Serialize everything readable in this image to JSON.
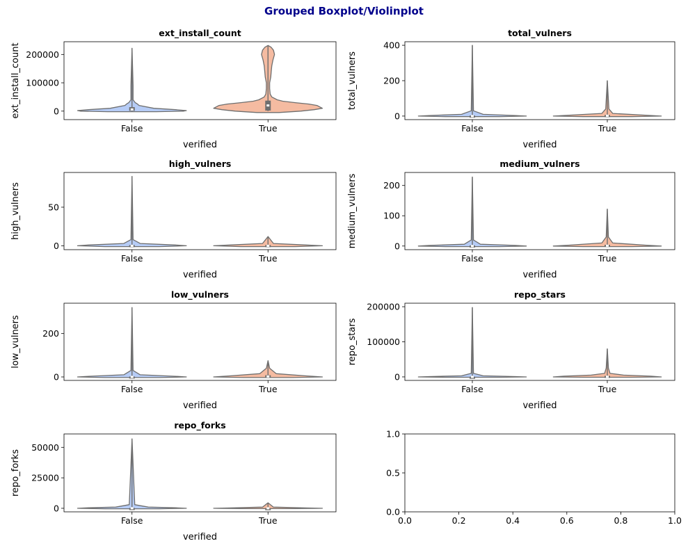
{
  "figure": {
    "suptitle": "Grouped Boxplot/Violinplot",
    "colors": {
      "title": "#00008b",
      "violin_false": "#b6ccf6",
      "violin_true": "#f5bba1",
      "line": "#6e6e6e",
      "axes": "#000000"
    }
  },
  "chart_data": [
    {
      "type": "violin",
      "title": "ext_install_count",
      "xlabel": "verified",
      "ylabel": "ext_install_count",
      "categories": [
        "False",
        "True"
      ],
      "ylim": [
        -30000,
        245000
      ],
      "yticks": [
        0,
        100000,
        200000
      ],
      "yticklabels": [
        "0",
        "100000",
        "200000"
      ],
      "groups": [
        {
          "name": "False",
          "min": 0,
          "max": 222000,
          "q1": 1000,
          "median": 6000,
          "q3": 14000,
          "profile": [
            [
              -2000,
              0.45
            ],
            [
              0,
              0.95
            ],
            [
              2000,
              1.0
            ],
            [
              5000,
              0.8
            ],
            [
              10000,
              0.4
            ],
            [
              20000,
              0.13
            ],
            [
              25000,
              0.1
            ],
            [
              30000,
              0.06
            ],
            [
              40000,
              0.02
            ],
            [
              60000,
              0.02
            ],
            [
              90000,
              0.02
            ],
            [
              222000,
              0.0
            ]
          ]
        },
        {
          "name": "True",
          "min": 0,
          "max": 232000,
          "q1": 2000,
          "median": 20000,
          "q3": 37000,
          "profile": [
            [
              -5000,
              0.2
            ],
            [
              0,
              0.6
            ],
            [
              5000,
              0.85
            ],
            [
              10000,
              1.0
            ],
            [
              20000,
              0.9
            ],
            [
              25000,
              0.75
            ],
            [
              30000,
              0.5
            ],
            [
              35000,
              0.27
            ],
            [
              40000,
              0.17
            ],
            [
              50000,
              0.07
            ],
            [
              60000,
              0.04
            ],
            [
              80000,
              0.03
            ],
            [
              100000,
              0.03
            ],
            [
              120000,
              0.05
            ],
            [
              140000,
              0.06
            ],
            [
              160000,
              0.07
            ],
            [
              180000,
              0.09
            ],
            [
              200000,
              0.12
            ],
            [
              215000,
              0.1
            ],
            [
              225000,
              0.06
            ],
            [
              232000,
              0.0
            ]
          ]
        }
      ]
    },
    {
      "type": "violin",
      "title": "total_vulners",
      "xlabel": "verified",
      "ylabel": "total_vulners",
      "categories": [
        "False",
        "True"
      ],
      "ylim": [
        -20,
        420
      ],
      "yticks": [
        0,
        200,
        400
      ],
      "yticklabels": [
        "0",
        "200",
        "400"
      ],
      "groups": [
        {
          "name": "False",
          "min": 0,
          "max": 400,
          "q1": 0,
          "median": 0,
          "q3": 3,
          "profile": [
            [
              -3,
              0.5
            ],
            [
              0,
              1.0
            ],
            [
              3,
              0.8
            ],
            [
              10,
              0.2
            ],
            [
              30,
              0.02
            ],
            [
              400,
              0.0
            ]
          ]
        },
        {
          "name": "True",
          "min": 0,
          "max": 200,
          "q1": 0,
          "median": 2,
          "q3": 6,
          "profile": [
            [
              -3,
              0.45
            ],
            [
              0,
              1.0
            ],
            [
              5,
              0.7
            ],
            [
              15,
              0.1
            ],
            [
              40,
              0.03
            ],
            [
              200,
              0.0
            ]
          ]
        }
      ]
    },
    {
      "type": "violin",
      "title": "high_vulners",
      "xlabel": "verified",
      "ylabel": "high_vulners",
      "categories": [
        "False",
        "True"
      ],
      "ylim": [
        -5,
        95
      ],
      "yticks": [
        0,
        50
      ],
      "yticklabels": [
        "0",
        "50"
      ],
      "groups": [
        {
          "name": "False",
          "min": 0,
          "max": 90,
          "q1": 0,
          "median": 0,
          "q3": 1,
          "profile": [
            [
              -1,
              0.5
            ],
            [
              0,
              1.0
            ],
            [
              1,
              0.8
            ],
            [
              3,
              0.15
            ],
            [
              8,
              0.02
            ],
            [
              90,
              0.0
            ]
          ]
        },
        {
          "name": "True",
          "min": 0,
          "max": 12,
          "q1": 0,
          "median": 0,
          "q3": 1,
          "profile": [
            [
              -1,
              0.5
            ],
            [
              0,
              1.0
            ],
            [
              1,
              0.7
            ],
            [
              3,
              0.1
            ],
            [
              12,
              0.0
            ]
          ]
        }
      ]
    },
    {
      "type": "violin",
      "title": "medium_vulners",
      "xlabel": "verified",
      "ylabel": "medium_vulners",
      "categories": [
        "False",
        "True"
      ],
      "ylim": [
        -12,
        243
      ],
      "yticks": [
        0,
        100,
        200
      ],
      "yticklabels": [
        "0",
        "100",
        "200"
      ],
      "groups": [
        {
          "name": "False",
          "min": 0,
          "max": 228,
          "q1": 0,
          "median": 0,
          "q3": 2,
          "profile": [
            [
              -2,
              0.5
            ],
            [
              0,
              1.0
            ],
            [
              2,
              0.8
            ],
            [
              6,
              0.15
            ],
            [
              20,
              0.02
            ],
            [
              228,
              0.0
            ]
          ]
        },
        {
          "name": "True",
          "min": 0,
          "max": 122,
          "q1": 0,
          "median": 1,
          "q3": 4,
          "profile": [
            [
              -2,
              0.45
            ],
            [
              0,
              1.0
            ],
            [
              3,
              0.7
            ],
            [
              10,
              0.1
            ],
            [
              30,
              0.02
            ],
            [
              122,
              0.0
            ]
          ]
        }
      ]
    },
    {
      "type": "violin",
      "title": "low_vulners",
      "xlabel": "verified",
      "ylabel": "low_vulners",
      "categories": [
        "False",
        "True"
      ],
      "ylim": [
        -16,
        340
      ],
      "yticks": [
        0,
        200
      ],
      "yticklabels": [
        "0",
        "200"
      ],
      "groups": [
        {
          "name": "False",
          "min": 0,
          "max": 320,
          "q1": 0,
          "median": 0,
          "q3": 2,
          "profile": [
            [
              -3,
              0.5
            ],
            [
              0,
              1.0
            ],
            [
              3,
              0.8
            ],
            [
              10,
              0.15
            ],
            [
              30,
              0.02
            ],
            [
              320,
              0.0
            ]
          ]
        },
        {
          "name": "True",
          "min": 0,
          "max": 75,
          "q1": 0,
          "median": 2,
          "q3": 8,
          "profile": [
            [
              -3,
              0.45
            ],
            [
              0,
              1.0
            ],
            [
              5,
              0.7
            ],
            [
              15,
              0.15
            ],
            [
              40,
              0.03
            ],
            [
              75,
              0.0
            ]
          ]
        }
      ]
    },
    {
      "type": "violin",
      "title": "repo_stars",
      "xlabel": "verified",
      "ylabel": "repo_stars",
      "categories": [
        "False",
        "True"
      ],
      "ylim": [
        -10000,
        210000
      ],
      "yticks": [
        0,
        100000,
        200000
      ],
      "yticklabels": [
        "0",
        "100000",
        "200000"
      ],
      "groups": [
        {
          "name": "False",
          "min": 0,
          "max": 198000,
          "q1": 0,
          "median": 100,
          "q3": 600,
          "profile": [
            [
              -1000,
              0.5
            ],
            [
              0,
              1.0
            ],
            [
              1000,
              0.8
            ],
            [
              3000,
              0.2
            ],
            [
              10000,
              0.02
            ],
            [
              198000,
              0.0
            ]
          ]
        },
        {
          "name": "True",
          "min": 0,
          "max": 80000,
          "q1": 0,
          "median": 500,
          "q3": 3000,
          "profile": [
            [
              -1000,
              0.45
            ],
            [
              0,
              1.0
            ],
            [
              2000,
              0.8
            ],
            [
              5000,
              0.3
            ],
            [
              10000,
              0.05
            ],
            [
              25000,
              0.02
            ],
            [
              80000,
              0.0
            ]
          ]
        }
      ]
    },
    {
      "type": "violin",
      "title": "repo_forks",
      "xlabel": "verified",
      "ylabel": "repo_forks",
      "categories": [
        "False",
        "True"
      ],
      "ylim": [
        -2900,
        61000
      ],
      "yticks": [
        0,
        25000,
        50000
      ],
      "yticklabels": [
        "0",
        "25000",
        "50000"
      ],
      "groups": [
        {
          "name": "False",
          "min": 0,
          "max": 57000,
          "q1": 0,
          "median": 50,
          "q3": 300,
          "profile": [
            [
              -400,
              0.5
            ],
            [
              0,
              1.0
            ],
            [
              400,
              0.8
            ],
            [
              1000,
              0.3
            ],
            [
              3000,
              0.05
            ],
            [
              57000,
              0.0
            ]
          ]
        },
        {
          "name": "True",
          "min": 0,
          "max": 4500,
          "q1": 0,
          "median": 20,
          "q3": 150,
          "profile": [
            [
              -300,
              0.5
            ],
            [
              0,
              1.0
            ],
            [
              300,
              0.7
            ],
            [
              1000,
              0.1
            ],
            [
              4500,
              0.0
            ]
          ]
        }
      ]
    },
    {
      "type": "empty",
      "title": "",
      "xlabel": "",
      "ylabel": "",
      "xlim": [
        0,
        1
      ],
      "ylim": [
        0,
        1
      ],
      "xticklabels": [
        "0.0",
        "0.2",
        "0.4",
        "0.6",
        "0.8",
        "1.0"
      ],
      "yticklabels": [
        "0.0",
        "0.5",
        "1.0"
      ]
    }
  ]
}
